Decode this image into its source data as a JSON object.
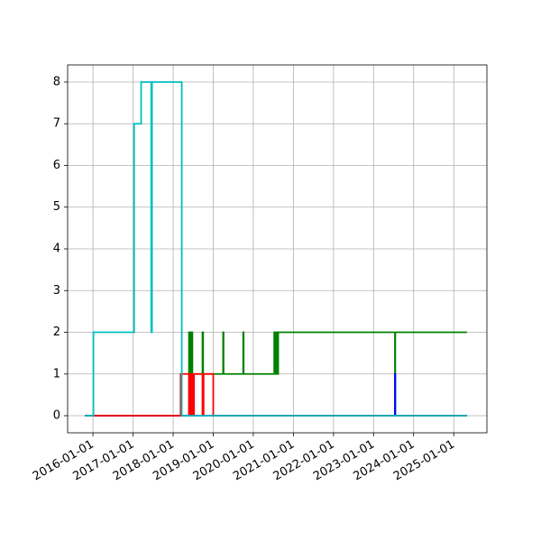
{
  "chart_data": {
    "type": "line",
    "drawstyle": "steps-post",
    "grid": true,
    "xlim": [
      "2015-05-15",
      "2025-10-30"
    ],
    "ylim": [
      -0.41,
      8.41
    ],
    "xticks": [
      "2016-01-01",
      "2017-01-01",
      "2018-01-01",
      "2019-01-01",
      "2020-01-01",
      "2021-01-01",
      "2022-01-01",
      "2023-01-01",
      "2024-01-01",
      "2025-01-01"
    ],
    "yticks": [
      0,
      1,
      2,
      3,
      4,
      5,
      6,
      7,
      8
    ],
    "series": [
      {
        "color": "#008000",
        "x": [
          "2015-10-20",
          "2018-05-25",
          "2018-06-05",
          "2018-06-15",
          "2018-06-25",
          "2018-07-05",
          "2018-09-25",
          "2018-10-01",
          "2019-04-01",
          "2019-04-05",
          "2019-10-01",
          "2019-10-05",
          "2020-07-10",
          "2020-07-15",
          "2020-07-25",
          "2020-08-01",
          "2020-08-15",
          "2023-07-15",
          "2023-07-18",
          "2025-05-01"
        ],
        "values": [
          0,
          2,
          1,
          2,
          1,
          1,
          2,
          1,
          2,
          1,
          2,
          1,
          2,
          1,
          2,
          1,
          2,
          0,
          2,
          2
        ]
      },
      {
        "color": "#0000ff",
        "x": [
          "2015-10-20",
          "2023-07-15",
          "2023-07-18",
          "2025-05-01"
        ],
        "values": [
          0,
          1,
          0,
          0
        ]
      },
      {
        "color": "#ff0000",
        "x": [
          "2015-10-20",
          "2018-03-10",
          "2018-05-25",
          "2018-06-01",
          "2018-06-10",
          "2018-06-20",
          "2018-07-01",
          "2018-07-10",
          "2018-09-25",
          "2018-10-05",
          "2019-01-01",
          "2025-05-01"
        ],
        "values": [
          0,
          1,
          0,
          1,
          0,
          1,
          0,
          1,
          0,
          1,
          0,
          0
        ]
      },
      {
        "color": "#00bfbf",
        "x": [
          "2015-10-20",
          "2016-01-05",
          "2017-01-10",
          "2017-03-15",
          "2017-06-15",
          "2017-06-22",
          "2018-03-20",
          "2025-05-01"
        ],
        "values": [
          0,
          2,
          7,
          8,
          2,
          8,
          0,
          0
        ]
      }
    ]
  }
}
